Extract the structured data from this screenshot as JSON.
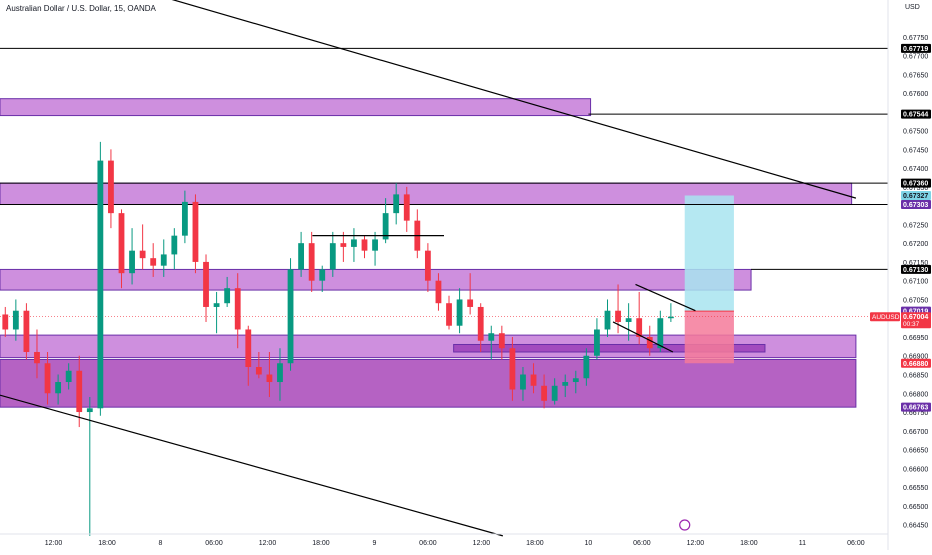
{
  "header": {
    "title": "Australian Dollar / U.S. Dollar, 15, OANDA",
    "currency": "USD"
  },
  "chart_data": {
    "type": "candlestick",
    "symbol": "AUDUSD",
    "ylim": [
      0.66425,
      0.678
    ],
    "x_range": [
      0,
      83
    ],
    "y_ticks": [
      0.6645,
      0.665,
      0.6655,
      0.666,
      0.6665,
      0.667,
      0.6675,
      0.668,
      0.6685,
      0.669,
      0.6695,
      0.67,
      0.6705,
      0.671,
      0.6715,
      0.672,
      0.6725,
      0.673,
      0.6735,
      0.674,
      0.6745,
      0.675,
      0.6755,
      0.676,
      0.6765,
      0.677,
      0.6775
    ],
    "y_tick_labels": [
      "0.66450",
      "0.66500",
      "0.66550",
      "0.66600",
      "0.66650",
      "0.66700",
      "0.66750",
      "0.66800",
      "0.66850",
      "0.66900",
      "0.66950",
      "0.67000",
      "0.67050",
      "0.67100",
      "0.67150",
      "0.67200",
      "0.67250",
      "0.67300",
      "0.67350",
      "0.67400",
      "0.67450",
      "0.67500",
      "0.67550",
      "0.67600",
      "0.67650",
      "0.67700",
      "0.67750"
    ],
    "x_ticks": [
      {
        "x": 5,
        "label": "12:00"
      },
      {
        "x": 10,
        "label": "18:00"
      },
      {
        "x": 15,
        "label": "8"
      },
      {
        "x": 20,
        "label": "06:00"
      },
      {
        "x": 25,
        "label": "12:00"
      },
      {
        "x": 30,
        "label": "18:00"
      },
      {
        "x": 35,
        "label": "9"
      },
      {
        "x": 40,
        "label": "06:00"
      },
      {
        "x": 45,
        "label": "12:00"
      },
      {
        "x": 50,
        "label": "18:00"
      },
      {
        "x": 55,
        "label": "10"
      },
      {
        "x": 60,
        "label": "06:00"
      },
      {
        "x": 65,
        "label": "12:00"
      },
      {
        "x": 70,
        "label": "18:00"
      },
      {
        "x": 75,
        "label": "11"
      },
      {
        "x": 80,
        "label": "06:00"
      }
    ],
    "price_markers": [
      {
        "value": 0.67719,
        "label": "0.67719",
        "bg": "#000000",
        "fg": "#ffffff"
      },
      {
        "value": 0.67544,
        "label": "0.67544",
        "bg": "#000000",
        "fg": "#ffffff"
      },
      {
        "value": 0.6736,
        "label": "0.67360",
        "bg": "#000000",
        "fg": "#ffffff"
      },
      {
        "value": 0.67327,
        "label": "0.67327",
        "bg": "#7ed4e6",
        "fg": "#131722"
      },
      {
        "value": 0.67303,
        "label": "0.67303",
        "bg": "#6a2fa8",
        "fg": "#ffffff"
      },
      {
        "value": 0.6713,
        "label": "0.67130",
        "bg": "#000000",
        "fg": "#ffffff"
      },
      {
        "value": 0.67019,
        "label": "0.67019",
        "bg": "#6a2fa8",
        "fg": "#ffffff"
      },
      {
        "value": 0.67004,
        "label": "0.67004",
        "bg": "#f23645",
        "fg": "#ffffff",
        "sub": "00:37"
      },
      {
        "value": 0.6688,
        "label": "0.66880",
        "bg": "#f23645",
        "fg": "#ffffff"
      },
      {
        "value": 0.66763,
        "label": "0.66763",
        "bg": "#6a2fa8",
        "fg": "#ffffff"
      }
    ],
    "symbol_tag": {
      "text": "AUDUSD",
      "value": 0.67004
    },
    "zones": [
      {
        "x0": 0,
        "x1": 55.2,
        "y_top": 0.67585,
        "y_bottom": 0.6754,
        "color": "#c57bd8"
      },
      {
        "x0": 0,
        "x1": 79.6,
        "y_top": 0.6736,
        "y_bottom": 0.67303,
        "color": "#c57bd8"
      },
      {
        "x0": 0,
        "x1": 70.2,
        "y_top": 0.6713,
        "y_bottom": 0.67075,
        "color": "#c57bd8"
      },
      {
        "x0": 0,
        "x1": 80,
        "y_top": 0.66955,
        "y_bottom": 0.66895,
        "color": "#c57bd8"
      },
      {
        "x0": 42.4,
        "x1": 71.5,
        "y_top": 0.6693,
        "y_bottom": 0.6691,
        "color": "#9a3fb8"
      },
      {
        "x0": 0,
        "x1": 80,
        "y_top": 0.6689,
        "y_bottom": 0.66763,
        "color": "#a847b8"
      }
    ],
    "horizontal_lines": [
      {
        "value": 0.67719,
        "x0": 0
      },
      {
        "value": 0.67544,
        "x0": 55
      },
      {
        "value": 0.6736,
        "x0": 0
      },
      {
        "value": 0.6713,
        "x0": 70.2
      },
      {
        "value": 0.67303,
        "x0": 0
      }
    ],
    "trend_lines": [
      {
        "x0": 16,
        "y0": 0.6785,
        "x1": 80,
        "y1": 0.6732
      },
      {
        "x0": 0,
        "y0": 0.66795,
        "x1": 47,
        "y1": 0.6642
      },
      {
        "x0": 29.2,
        "y0": 0.6722,
        "x1": 41.5,
        "y1": 0.6722
      },
      {
        "x0": 59.4,
        "y0": 0.6709,
        "x1": 65,
        "y1": 0.6702
      },
      {
        "x0": 57.3,
        "y0": 0.6699,
        "x1": 62.9,
        "y1": 0.6691
      }
    ],
    "position": {
      "x0": 64,
      "x1": 68.6,
      "entry": 0.67019,
      "target": 0.67327,
      "stop": 0.6688,
      "profit_color": "#a8e4f0",
      "loss_color": "#f47a9a"
    },
    "candles": [
      [
        0.6701,
        0.6703,
        0.6695,
        0.6697
      ],
      [
        0.6697,
        0.6705,
        0.6694,
        0.6702
      ],
      [
        0.6702,
        0.6704,
        0.6689,
        0.6691
      ],
      [
        0.6691,
        0.6697,
        0.6684,
        0.6688
      ],
      [
        0.6688,
        0.6691,
        0.6677,
        0.668
      ],
      [
        0.668,
        0.6685,
        0.6677,
        0.6683
      ],
      [
        0.6683,
        0.6688,
        0.6681,
        0.6686
      ],
      [
        0.6686,
        0.669,
        0.6671,
        0.6675
      ],
      [
        0.6675,
        0.6679,
        0.6642,
        0.6676
      ],
      [
        0.6676,
        0.6747,
        0.6674,
        0.6742
      ],
      [
        0.6742,
        0.6745,
        0.6724,
        0.6728
      ],
      [
        0.6728,
        0.6729,
        0.6708,
        0.6712
      ],
      [
        0.6712,
        0.6724,
        0.6709,
        0.6718
      ],
      [
        0.6718,
        0.6725,
        0.6713,
        0.6716
      ],
      [
        0.6716,
        0.672,
        0.6711,
        0.6714
      ],
      [
        0.6714,
        0.6721,
        0.6711,
        0.6717
      ],
      [
        0.6717,
        0.6724,
        0.6713,
        0.6722
      ],
      [
        0.6722,
        0.6734,
        0.672,
        0.6731
      ],
      [
        0.6731,
        0.6733,
        0.6712,
        0.6715
      ],
      [
        0.6715,
        0.6717,
        0.6699,
        0.6703
      ],
      [
        0.6703,
        0.6707,
        0.6696,
        0.6704
      ],
      [
        0.6704,
        0.6711,
        0.6703,
        0.6708
      ],
      [
        0.6708,
        0.6712,
        0.6692,
        0.6697
      ],
      [
        0.6697,
        0.6698,
        0.6682,
        0.6687
      ],
      [
        0.6687,
        0.6691,
        0.6684,
        0.6685
      ],
      [
        0.6685,
        0.6691,
        0.6679,
        0.6683
      ],
      [
        0.6683,
        0.6692,
        0.6678,
        0.6688
      ],
      [
        0.6688,
        0.6716,
        0.6686,
        0.6713
      ],
      [
        0.6713,
        0.6723,
        0.6711,
        0.672
      ],
      [
        0.672,
        0.6723,
        0.6707,
        0.671
      ],
      [
        0.671,
        0.6714,
        0.6707,
        0.6713
      ],
      [
        0.6713,
        0.6723,
        0.6711,
        0.672
      ],
      [
        0.672,
        0.6723,
        0.6715,
        0.6719
      ],
      [
        0.6719,
        0.6724,
        0.6715,
        0.6721
      ],
      [
        0.6721,
        0.6722,
        0.6716,
        0.6718
      ],
      [
        0.6718,
        0.6723,
        0.6714,
        0.6721
      ],
      [
        0.6721,
        0.6732,
        0.672,
        0.6728
      ],
      [
        0.6728,
        0.6736,
        0.6725,
        0.6733
      ],
      [
        0.6733,
        0.6735,
        0.6723,
        0.6726
      ],
      [
        0.6726,
        0.6729,
        0.6716,
        0.6718
      ],
      [
        0.6718,
        0.672,
        0.6707,
        0.671
      ],
      [
        0.671,
        0.6712,
        0.6702,
        0.6704
      ],
      [
        0.6704,
        0.6706,
        0.6697,
        0.6698
      ],
      [
        0.6698,
        0.6708,
        0.6696,
        0.6705
      ],
      [
        0.6705,
        0.6712,
        0.6701,
        0.6703
      ],
      [
        0.6703,
        0.6704,
        0.6691,
        0.6694
      ],
      [
        0.6694,
        0.6698,
        0.6689,
        0.6696
      ],
      [
        0.6696,
        0.6698,
        0.6689,
        0.6692
      ],
      [
        0.6692,
        0.6695,
        0.6678,
        0.6681
      ],
      [
        0.6681,
        0.6687,
        0.6678,
        0.6685
      ],
      [
        0.6685,
        0.6688,
        0.668,
        0.6682
      ],
      [
        0.6682,
        0.6685,
        0.6676,
        0.6678
      ],
      [
        0.6678,
        0.6684,
        0.6677,
        0.6682
      ],
      [
        0.6682,
        0.6685,
        0.6679,
        0.6683
      ],
      [
        0.6683,
        0.6686,
        0.668,
        0.6684
      ],
      [
        0.6684,
        0.6692,
        0.6682,
        0.669
      ],
      [
        0.669,
        0.67,
        0.6689,
        0.6697
      ],
      [
        0.6697,
        0.6705,
        0.6695,
        0.6702
      ],
      [
        0.6702,
        0.6709,
        0.6696,
        0.6699
      ],
      [
        0.6699,
        0.6704,
        0.6694,
        0.67
      ],
      [
        0.67,
        0.6707,
        0.6693,
        0.6695
      ],
      [
        0.6695,
        0.6698,
        0.669,
        0.6692
      ],
      [
        0.6692,
        0.6702,
        0.6691,
        0.67
      ],
      [
        0.67,
        0.6704,
        0.6699,
        0.67004
      ]
    ],
    "candle_slot_range": [
      0,
      63.2
    ],
    "up_color": "#089981",
    "down_color": "#f23645",
    "grid": false
  }
}
